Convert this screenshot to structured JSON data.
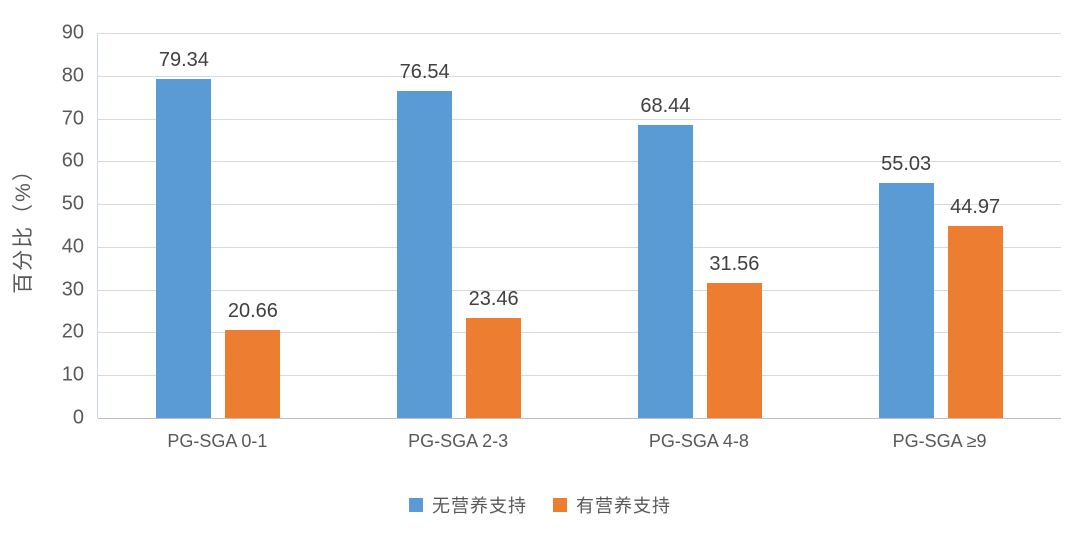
{
  "chart_data": {
    "type": "bar",
    "title": "",
    "xlabel": "",
    "ylabel": "百分比（%）",
    "categories": [
      "PG-SGA 0-1",
      "PG-SGA 2-3",
      "PG-SGA 4-8",
      "PG-SGA ≥9"
    ],
    "series": [
      {
        "name": "无营养支持",
        "color": "#5B9BD5",
        "values": [
          79.34,
          76.54,
          68.44,
          55.03
        ]
      },
      {
        "name": "有营养支持",
        "color": "#ED7D31",
        "values": [
          20.66,
          23.46,
          31.56,
          44.97
        ]
      }
    ],
    "ylim": [
      0,
      90
    ],
    "yticks": [
      0,
      10,
      20,
      30,
      40,
      50,
      60,
      70,
      80,
      90
    ],
    "grid": true,
    "data_labels": true,
    "decimals": 2,
    "legend_position": "bottom"
  },
  "colors": {
    "background": "#ffffff",
    "axis_text": "#595959",
    "data_label_text": "#404040",
    "gridline": "#d9d9d9",
    "axis_line": "#bfbfbf",
    "plot_border": "#cdd7e0"
  }
}
